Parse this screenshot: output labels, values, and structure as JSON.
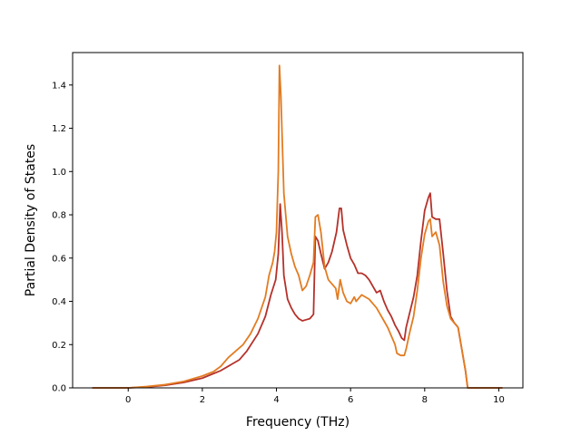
{
  "chart_data": {
    "type": "line",
    "title": "",
    "xlabel": "Frequency (THz)",
    "ylabel": "Partial Density of States",
    "xlim": [
      -1.5,
      10.65
    ],
    "ylim": [
      0,
      1.55
    ],
    "grid": false,
    "x_ticks": [
      0,
      2,
      4,
      6,
      8,
      10
    ],
    "y_ticks": [
      0.0,
      0.2,
      0.4,
      0.6,
      0.8,
      1.0,
      1.2,
      1.4
    ],
    "x_tick_labels": [
      "0",
      "2",
      "4",
      "6",
      "8",
      "10"
    ],
    "y_tick_labels": [
      "0.0",
      "0.2",
      "0.4",
      "0.6",
      "0.8",
      "1.0",
      "1.2",
      "1.4"
    ],
    "series": [
      {
        "color": "#b5312a",
        "points": [
          [
            -0.97,
            0.0
          ],
          [
            0.0,
            0.0
          ],
          [
            0.5,
            0.004
          ],
          [
            1.0,
            0.012
          ],
          [
            1.5,
            0.025
          ],
          [
            2.0,
            0.045
          ],
          [
            2.5,
            0.08
          ],
          [
            3.0,
            0.13
          ],
          [
            3.2,
            0.17
          ],
          [
            3.5,
            0.25
          ],
          [
            3.7,
            0.33
          ],
          [
            3.85,
            0.43
          ],
          [
            3.98,
            0.5
          ],
          [
            4.05,
            0.62
          ],
          [
            4.1,
            0.85
          ],
          [
            4.15,
            0.72
          ],
          [
            4.2,
            0.52
          ],
          [
            4.3,
            0.41
          ],
          [
            4.4,
            0.37
          ],
          [
            4.5,
            0.34
          ],
          [
            4.6,
            0.32
          ],
          [
            4.7,
            0.31
          ],
          [
            4.8,
            0.315
          ],
          [
            4.9,
            0.32
          ],
          [
            5.0,
            0.34
          ],
          [
            5.05,
            0.7
          ],
          [
            5.12,
            0.68
          ],
          [
            5.2,
            0.62
          ],
          [
            5.3,
            0.55
          ],
          [
            5.4,
            0.58
          ],
          [
            5.5,
            0.63
          ],
          [
            5.62,
            0.72
          ],
          [
            5.7,
            0.83
          ],
          [
            5.75,
            0.83
          ],
          [
            5.8,
            0.73
          ],
          [
            5.9,
            0.66
          ],
          [
            6.0,
            0.6
          ],
          [
            6.1,
            0.57
          ],
          [
            6.2,
            0.53
          ],
          [
            6.3,
            0.53
          ],
          [
            6.4,
            0.52
          ],
          [
            6.5,
            0.5
          ],
          [
            6.6,
            0.47
          ],
          [
            6.7,
            0.44
          ],
          [
            6.8,
            0.45
          ],
          [
            6.9,
            0.4
          ],
          [
            7.0,
            0.36
          ],
          [
            7.1,
            0.33
          ],
          [
            7.2,
            0.29
          ],
          [
            7.3,
            0.26
          ],
          [
            7.38,
            0.23
          ],
          [
            7.45,
            0.22
          ],
          [
            7.5,
            0.28
          ],
          [
            7.6,
            0.35
          ],
          [
            7.7,
            0.42
          ],
          [
            7.8,
            0.52
          ],
          [
            7.9,
            0.68
          ],
          [
            8.0,
            0.82
          ],
          [
            8.1,
            0.88
          ],
          [
            8.15,
            0.9
          ],
          [
            8.2,
            0.79
          ],
          [
            8.3,
            0.78
          ],
          [
            8.4,
            0.78
          ],
          [
            8.5,
            0.62
          ],
          [
            8.6,
            0.45
          ],
          [
            8.7,
            0.33
          ],
          [
            8.8,
            0.3
          ],
          [
            8.9,
            0.28
          ],
          [
            9.0,
            0.18
          ],
          [
            9.1,
            0.08
          ],
          [
            9.16,
            0.0
          ],
          [
            10.1,
            0.0
          ]
        ]
      },
      {
        "color": "#e27c22",
        "points": [
          [
            -0.97,
            0.0
          ],
          [
            0.0,
            0.0
          ],
          [
            0.5,
            0.006
          ],
          [
            1.0,
            0.015
          ],
          [
            1.5,
            0.03
          ],
          [
            2.0,
            0.055
          ],
          [
            2.3,
            0.075
          ],
          [
            2.5,
            0.1
          ],
          [
            2.7,
            0.14
          ],
          [
            2.9,
            0.17
          ],
          [
            3.1,
            0.2
          ],
          [
            3.3,
            0.25
          ],
          [
            3.5,
            0.32
          ],
          [
            3.7,
            0.42
          ],
          [
            3.8,
            0.52
          ],
          [
            3.9,
            0.58
          ],
          [
            3.95,
            0.63
          ],
          [
            4.0,
            0.72
          ],
          [
            4.05,
            1.0
          ],
          [
            4.08,
            1.49
          ],
          [
            4.12,
            1.35
          ],
          [
            4.2,
            0.9
          ],
          [
            4.3,
            0.7
          ],
          [
            4.4,
            0.62
          ],
          [
            4.5,
            0.56
          ],
          [
            4.6,
            0.52
          ],
          [
            4.7,
            0.45
          ],
          [
            4.8,
            0.47
          ],
          [
            4.9,
            0.52
          ],
          [
            5.0,
            0.58
          ],
          [
            5.05,
            0.79
          ],
          [
            5.12,
            0.8
          ],
          [
            5.2,
            0.72
          ],
          [
            5.3,
            0.56
          ],
          [
            5.4,
            0.5
          ],
          [
            5.5,
            0.48
          ],
          [
            5.6,
            0.46
          ],
          [
            5.65,
            0.41
          ],
          [
            5.72,
            0.5
          ],
          [
            5.8,
            0.44
          ],
          [
            5.9,
            0.4
          ],
          [
            6.0,
            0.39
          ],
          [
            6.1,
            0.42
          ],
          [
            6.15,
            0.4
          ],
          [
            6.2,
            0.41
          ],
          [
            6.3,
            0.43
          ],
          [
            6.4,
            0.42
          ],
          [
            6.5,
            0.41
          ],
          [
            6.6,
            0.39
          ],
          [
            6.7,
            0.37
          ],
          [
            6.8,
            0.34
          ],
          [
            6.9,
            0.31
          ],
          [
            7.0,
            0.28
          ],
          [
            7.1,
            0.24
          ],
          [
            7.2,
            0.2
          ],
          [
            7.25,
            0.16
          ],
          [
            7.35,
            0.15
          ],
          [
            7.45,
            0.15
          ],
          [
            7.5,
            0.18
          ],
          [
            7.6,
            0.26
          ],
          [
            7.7,
            0.33
          ],
          [
            7.8,
            0.45
          ],
          [
            7.9,
            0.6
          ],
          [
            8.0,
            0.71
          ],
          [
            8.1,
            0.77
          ],
          [
            8.15,
            0.78
          ],
          [
            8.2,
            0.7
          ],
          [
            8.3,
            0.72
          ],
          [
            8.4,
            0.66
          ],
          [
            8.5,
            0.49
          ],
          [
            8.6,
            0.38
          ],
          [
            8.7,
            0.32
          ],
          [
            8.8,
            0.3
          ],
          [
            8.9,
            0.28
          ],
          [
            9.0,
            0.18
          ],
          [
            9.1,
            0.08
          ],
          [
            9.16,
            0.0
          ],
          [
            10.1,
            0.0
          ]
        ]
      }
    ]
  }
}
